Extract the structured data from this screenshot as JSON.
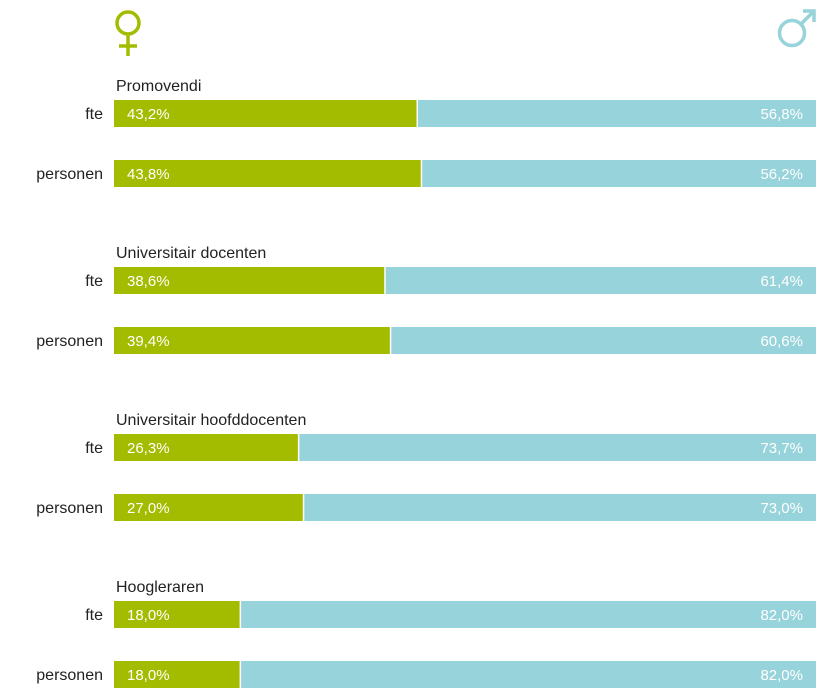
{
  "chart_data": {
    "type": "bar",
    "orientation": "horizontal",
    "stacked": true,
    "normalized": true,
    "legend": [
      {
        "icon": "female-symbol-icon",
        "color": "#a4bc00",
        "position": "top-left"
      },
      {
        "icon": "male-symbol-icon",
        "color": "#97d3da",
        "position": "top-right"
      }
    ],
    "groups": [
      {
        "title": "Promovendi",
        "rows": [
          {
            "label": "fte",
            "female": 43.2,
            "male": 56.8,
            "female_label": "43,2%",
            "male_label": "56,8%"
          },
          {
            "label": "personen",
            "female": 43.8,
            "male": 56.2,
            "female_label": "43,8%",
            "male_label": "56,2%"
          }
        ]
      },
      {
        "title": "Universitair docenten",
        "rows": [
          {
            "label": "fte",
            "female": 38.6,
            "male": 61.4,
            "female_label": "38,6%",
            "male_label": "61,4%"
          },
          {
            "label": "personen",
            "female": 39.4,
            "male": 60.6,
            "female_label": "39,4%",
            "male_label": "60,6%"
          }
        ]
      },
      {
        "title": "Universitair hoofddocenten",
        "rows": [
          {
            "label": "fte",
            "female": 26.3,
            "male": 73.7,
            "female_label": "26,3%",
            "male_label": "73,7%"
          },
          {
            "label": "personen",
            "female": 27.0,
            "male": 73.0,
            "female_label": "27,0%",
            "male_label": "73,0%"
          }
        ]
      },
      {
        "title": "Hoogleraren",
        "rows": [
          {
            "label": "fte",
            "female": 18.0,
            "male": 82.0,
            "female_label": "18,0%",
            "male_label": "82,0%"
          },
          {
            "label": "personen",
            "female": 18.0,
            "male": 82.0,
            "female_label": "18,0%",
            "male_label": "82,0%"
          }
        ]
      }
    ],
    "colors": {
      "female": "#a4bc00",
      "male": "#97d3da",
      "label_text": "#ffffff",
      "axis_text": "#222222"
    }
  }
}
